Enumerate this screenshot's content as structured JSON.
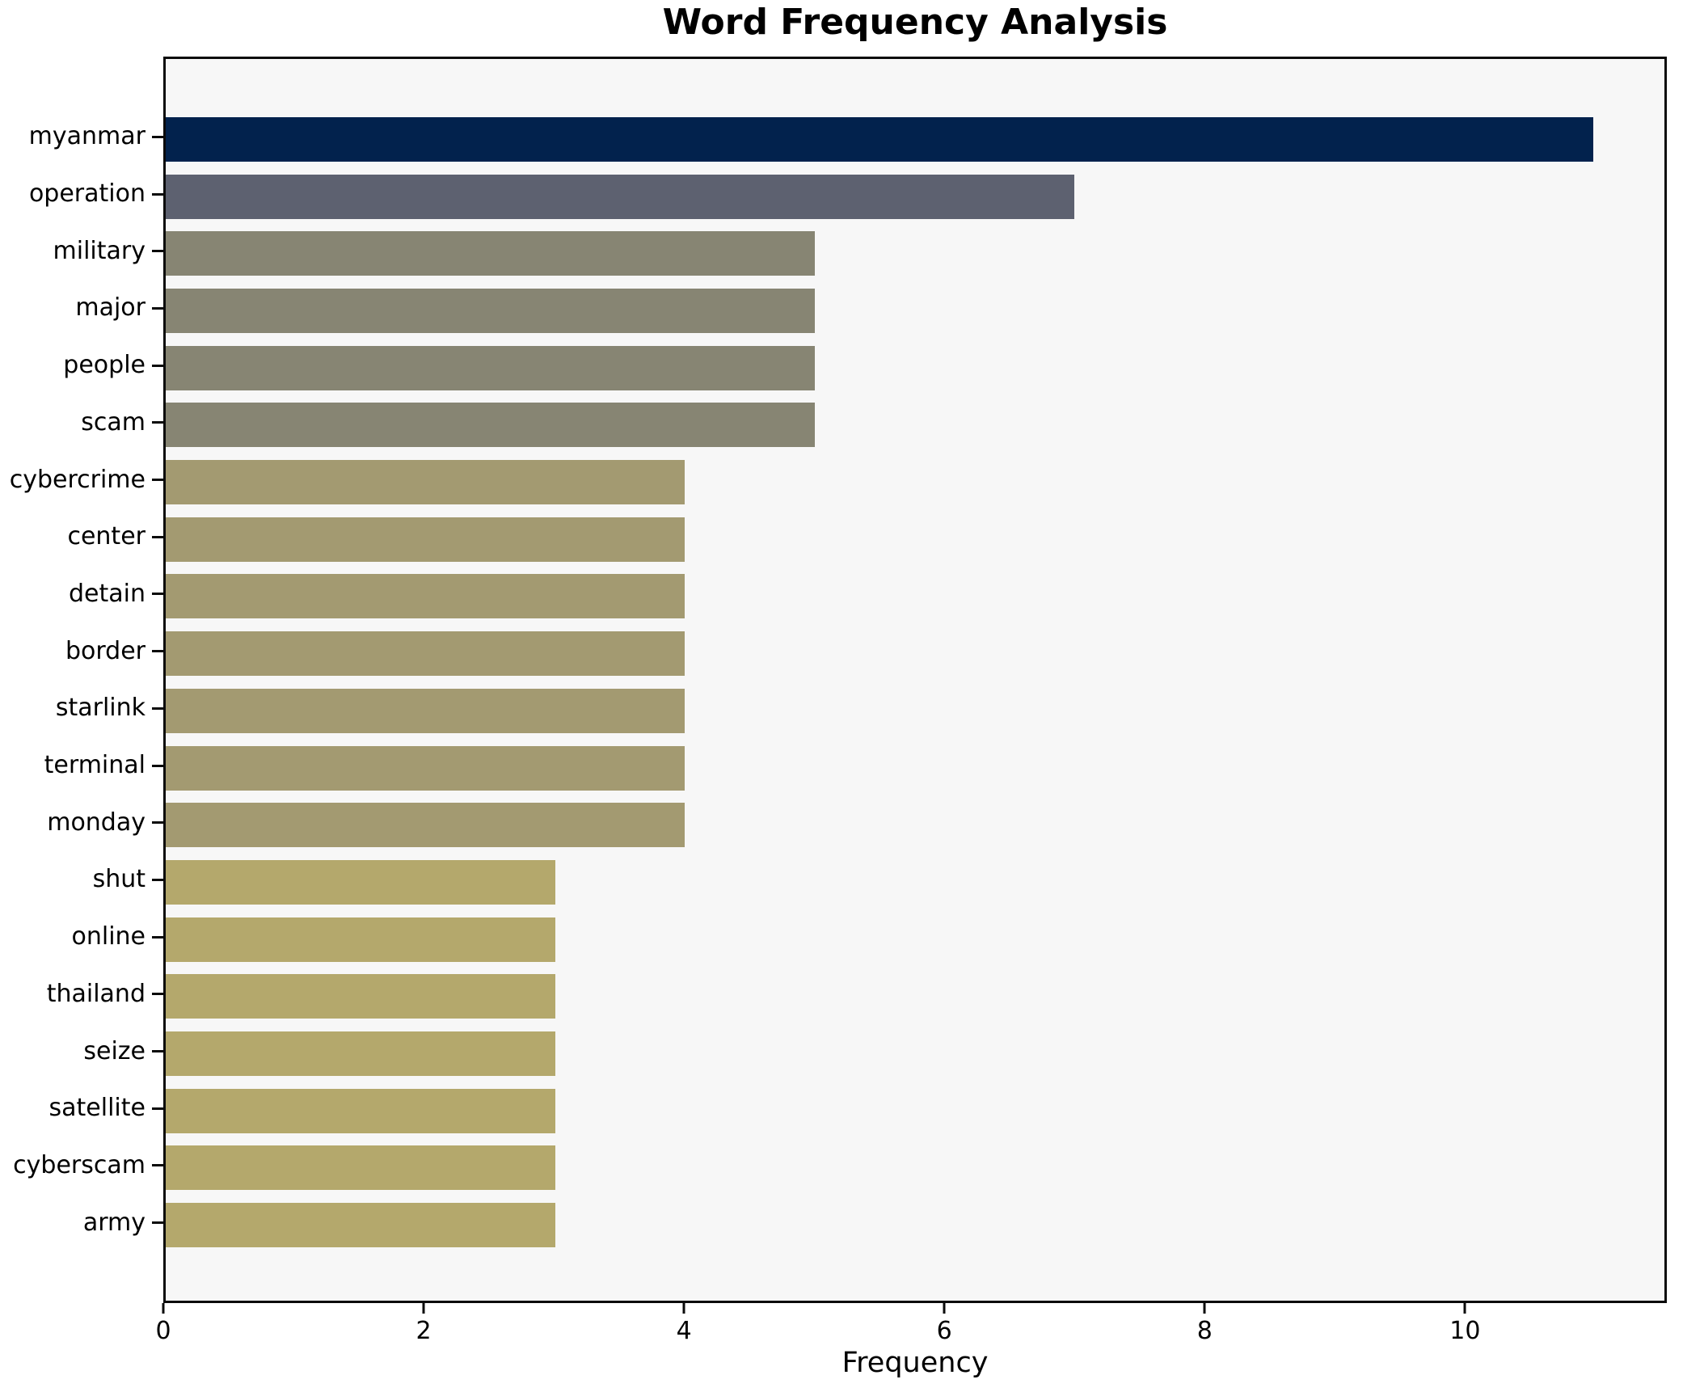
{
  "title": "Word Frequency Analysis",
  "xlabel": "Frequency",
  "chart_data": {
    "type": "bar",
    "orientation": "horizontal",
    "title": "Word Frequency Analysis",
    "xlabel": "Frequency",
    "ylabel": "",
    "categories": [
      "myanmar",
      "operation",
      "military",
      "major",
      "people",
      "scam",
      "cybercrime",
      "center",
      "detain",
      "border",
      "starlink",
      "terminal",
      "monday",
      "shut",
      "online",
      "thailand",
      "seize",
      "satellite",
      "cyberscam",
      "army"
    ],
    "values": [
      11,
      7,
      5,
      5,
      5,
      5,
      4,
      4,
      4,
      4,
      4,
      4,
      4,
      3,
      3,
      3,
      3,
      3,
      3,
      3
    ],
    "xlim": [
      0,
      11.55
    ],
    "xticks": [
      0,
      2,
      4,
      6,
      8,
      10
    ],
    "grid": false,
    "legend": null,
    "value_colors": {
      "11": "#02224d",
      "7": "#5d6170",
      "5": "#878573",
      "4": "#a39a71",
      "3": "#b4a86c"
    },
    "plot_background": "#f7f7f7",
    "figure_background": "#ffffff",
    "spine_color": "#0a0a0a",
    "text_color": "#000000"
  }
}
